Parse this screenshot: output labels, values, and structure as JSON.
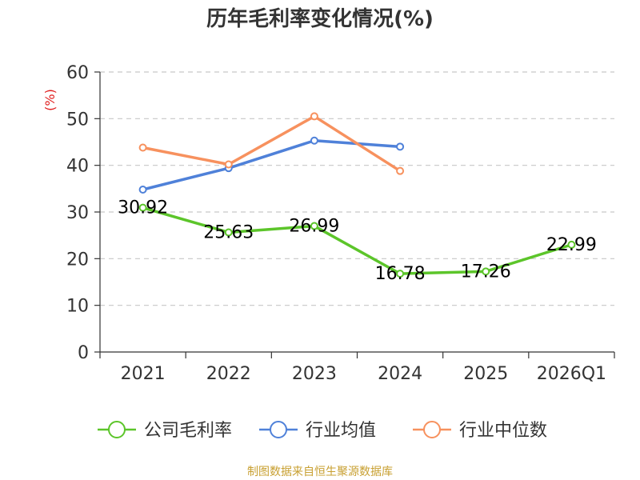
{
  "chart_data": {
    "type": "line",
    "title": "历年毛利率变化情况(%)",
    "ylabel": "(%)",
    "xlabel": "",
    "categories": [
      "2021",
      "2022",
      "2023",
      "2024",
      "2025",
      "2026Q1"
    ],
    "ylim": [
      0,
      60
    ],
    "yticks": [
      0,
      10,
      20,
      30,
      40,
      50,
      60
    ],
    "grid": true,
    "legend_position": "bottom",
    "series": [
      {
        "name": "公司毛利率",
        "color": "#5cc52a",
        "values": [
          30.92,
          25.63,
          26.99,
          16.78,
          17.26,
          22.99
        ],
        "labels": [
          "30.92",
          "25.63",
          "26.99",
          "16.78",
          "17.26",
          "22.99"
        ]
      },
      {
        "name": "行业均值",
        "color": "#4f81d9",
        "values": [
          34.8,
          39.4,
          45.3,
          44.0,
          null,
          null
        ]
      },
      {
        "name": "行业中位数",
        "color": "#f7915e",
        "values": [
          43.8,
          40.2,
          50.5,
          38.8,
          null,
          null
        ]
      }
    ]
  },
  "ylabel_color": "#e02020",
  "footer": {
    "source": "制图数据来自恒生聚源数据库"
  }
}
